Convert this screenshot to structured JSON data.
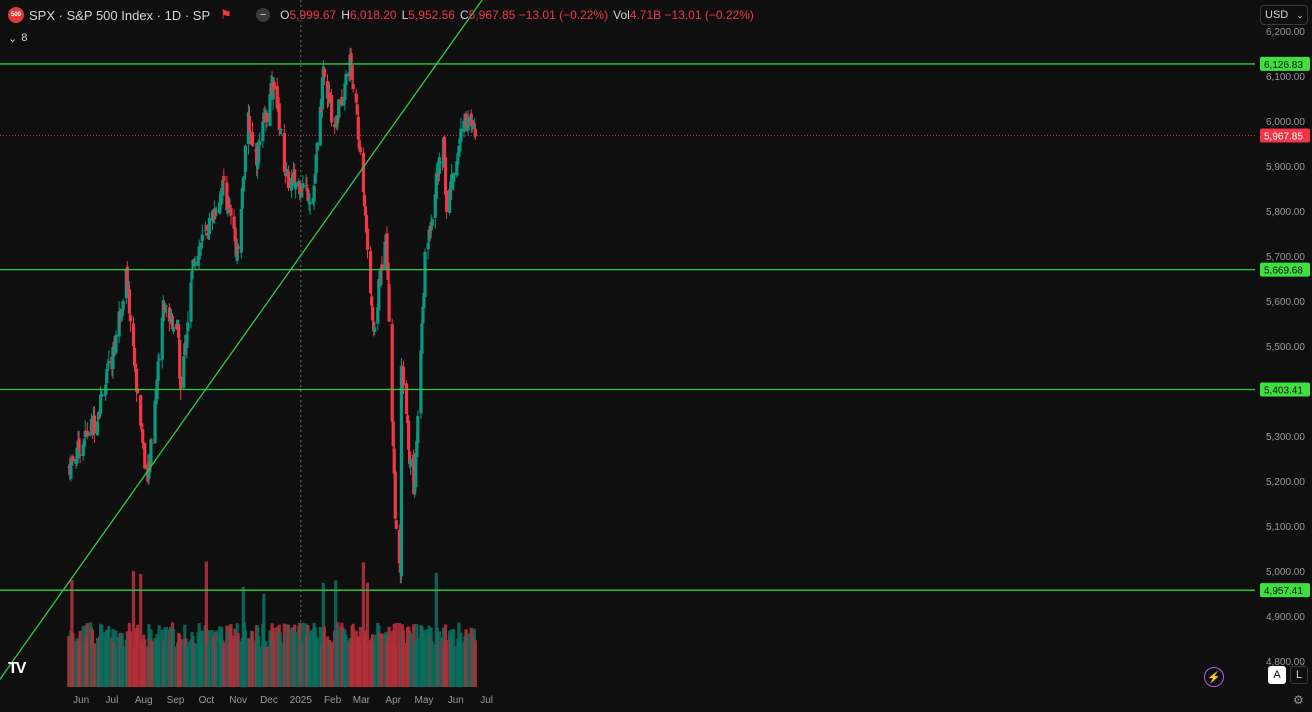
{
  "header": {
    "logo_text": "500",
    "title": "SPX · S&P 500 Index · 1D · SP",
    "ohlc": [
      {
        "label": "O",
        "value": "5,999.67"
      },
      {
        "label": "H",
        "value": "6,018.20"
      },
      {
        "label": "L",
        "value": "5,952.56"
      },
      {
        "label": "C",
        "value": "5,967.85 −13.01 (−0.22%)"
      }
    ],
    "vol_label": "Vol",
    "vol_value": "4.71B −13.01 (−0.22%)",
    "indicator_count": "8",
    "currency": "USD"
  },
  "colors": {
    "up": "#089981",
    "down": "#f23645",
    "level_line": "#2ecc40",
    "level_badge": "#3ee03e",
    "price_badge": "#f23645",
    "background": "#0f0f0f"
  },
  "price_axis": {
    "ticks": [
      "6,200.00",
      "6,100.00",
      "6,000.00",
      "5,900.00",
      "5,800.00",
      "5,700.00",
      "5,600.00",
      "5,500.00",
      "5,400.00",
      "5,300.00",
      "5,200.00",
      "5,100.00",
      "5,000.00",
      "4,900.00",
      "4,800.00"
    ],
    "range": [
      4800,
      6200
    ]
  },
  "time_axis": {
    "labels": [
      "Jun",
      "Jul",
      "Aug",
      "Sep",
      "Oct",
      "Nov",
      "Dec",
      "2025",
      "Feb",
      "Mar",
      "Apr",
      "May",
      "Jun",
      "Jul"
    ]
  },
  "levels": [
    {
      "value": 6126.83,
      "label": "6,126.83"
    },
    {
      "value": 5669.68,
      "label": "5,669.68"
    },
    {
      "value": 5403.41,
      "label": "5,403.41"
    },
    {
      "value": 4957.41,
      "label": "4,957.41"
    }
  ],
  "last_price": {
    "value": 5967.85,
    "label": "5,967.85"
  },
  "trendline": {
    "from": {
      "date": "2024-05-20",
      "price": 4975
    },
    "to": {
      "date": "2025-07-01",
      "price": 6283
    }
  },
  "crosshair": {
    "date": "2025-01-01"
  },
  "chart_data": {
    "type": "candlestick",
    "symbol": "SPX",
    "title": "S&P 500 Index",
    "interval": "1D",
    "ylim": [
      4800,
      6200
    ],
    "anchor_closes": [
      [
        "2024-05-20",
        5230
      ],
      [
        "2024-06-03",
        5290
      ],
      [
        "2024-06-14",
        5330
      ],
      [
        "2024-07-01",
        5470
      ],
      [
        "2024-07-15",
        5660
      ],
      [
        "2024-07-24",
        5440
      ],
      [
        "2024-08-05",
        5190
      ],
      [
        "2024-08-20",
        5590
      ],
      [
        "2024-09-03",
        5540
      ],
      [
        "2024-09-06",
        5400
      ],
      [
        "2024-09-19",
        5700
      ],
      [
        "2024-10-01",
        5750
      ],
      [
        "2024-10-18",
        5860
      ],
      [
        "2024-10-31",
        5710
      ],
      [
        "2024-11-11",
        6000
      ],
      [
        "2024-11-19",
        5920
      ],
      [
        "2024-12-06",
        6090
      ],
      [
        "2024-12-18",
        5870
      ],
      [
        "2025-01-02",
        5860
      ],
      [
        "2025-01-13",
        5830
      ],
      [
        "2025-01-23",
        6100
      ],
      [
        "2025-02-03",
        5990
      ],
      [
        "2025-02-19",
        6140
      ],
      [
        "2025-03-03",
        5850
      ],
      [
        "2025-03-13",
        5520
      ],
      [
        "2025-03-25",
        5770
      ],
      [
        "2025-04-04",
        5070
      ],
      [
        "2025-04-08",
        4980
      ],
      [
        "2025-04-09",
        5460
      ],
      [
        "2025-04-21",
        5160
      ],
      [
        "2025-05-02",
        5690
      ],
      [
        "2025-05-12",
        5850
      ],
      [
        "2025-05-20",
        5940
      ],
      [
        "2025-05-23",
        5800
      ],
      [
        "2025-06-09",
        6010
      ],
      [
        "2025-06-20",
        5967.85
      ]
    ]
  }
}
